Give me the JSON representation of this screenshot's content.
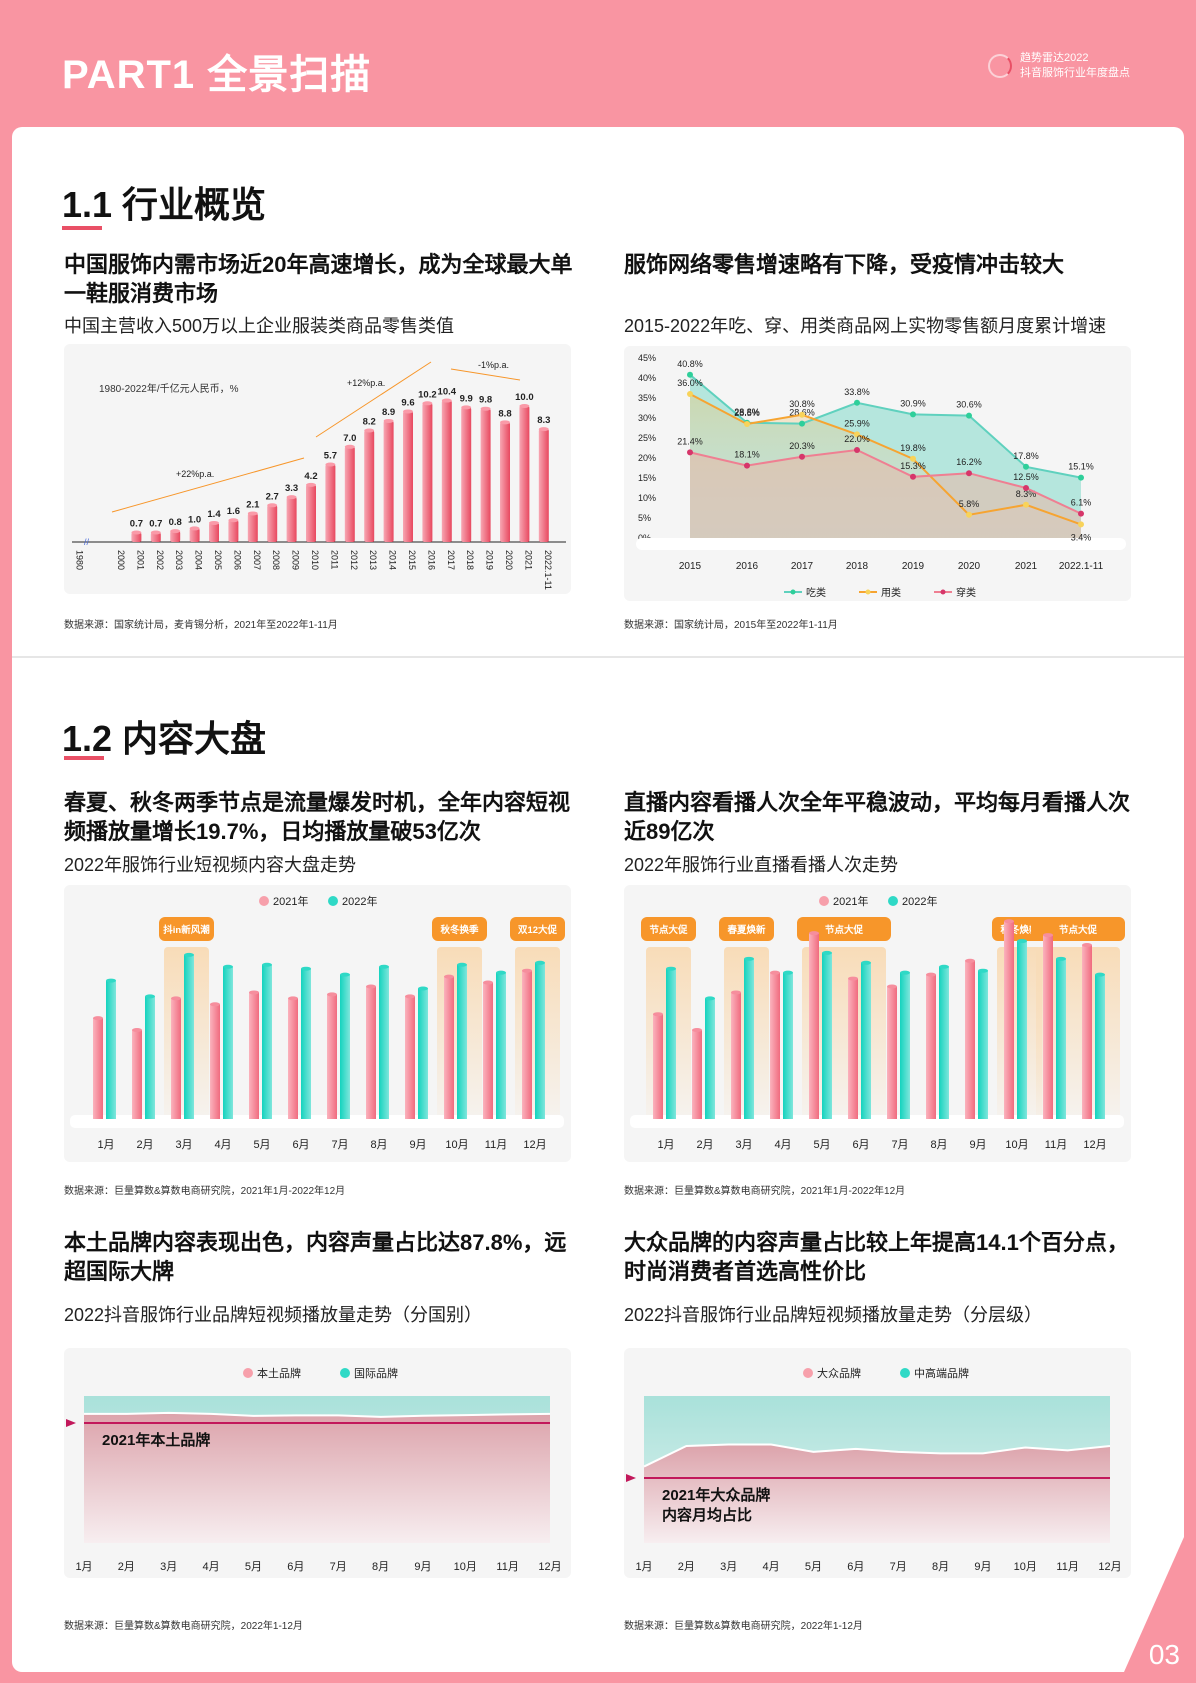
{
  "header": {
    "part_title": "PART1 全景扫描",
    "brand_line1": "趋势雷达2022",
    "brand_line2": "抖音服饰行业年度盘点"
  },
  "page_number": "03",
  "section1": {
    "title": "1.1 行业概览",
    "left": {
      "headline": "中国服饰内需市场近20年高速增长，成为全球最大单一鞋服消费市场",
      "subtitle": "中国主营收入500万以上企业服装类商品零售类值",
      "source": "数据来源：国家统计局，麦肯锡分析，2021年至2022年1-11月"
    },
    "right": {
      "headline": "服饰网络零售增速略有下降，受疫情冲击较大",
      "subtitle": "2015-2022年吃、穿、用类商品网上实物零售额月度累计增速",
      "source": "数据来源：国家统计局，2015年至2022年1-11月"
    }
  },
  "section2": {
    "title": "1.2 内容大盘",
    "c1": {
      "headline": "春夏、秋冬两季节点是流量爆发时机，全年内容短视频播放量增长19.7%，日均播放量破53亿次",
      "subtitle": "2022年服饰行业短视频内容大盘走势",
      "source": "数据来源：巨量算数&算数电商研究院，2021年1月-2022年12月"
    },
    "c2": {
      "headline": "直播内容看播人次全年平稳波动，平均每月看播人次近89亿次",
      "subtitle": "2022年服饰行业直播看播人次走势",
      "source": "数据来源：巨量算数&算数电商研究院，2021年1月-2022年12月"
    },
    "c3": {
      "headline": "本土品牌内容表现出色，内容声量占比达87.8%，远超国际大牌",
      "subtitle": "2022抖音服饰行业品牌短视频播放量走势（分国别）",
      "source": "数据来源：巨量算数&算数电商研究院，2022年1-12月"
    },
    "c4": {
      "headline": "大众品牌的内容声量占比较上年提高14.1个百分点，时尚消费者首选高性价比",
      "subtitle": "2022抖音服饰行业品牌短视频播放量走势（分层级）",
      "source": "数据来源：巨量算数&算数电商研究院，2022年1-12月"
    }
  },
  "colors": {
    "pink_bg": "#f995a2",
    "accent_red": "#e95066",
    "bar_pink": "#f27b8c",
    "bar_teal": "#2fd9c6",
    "orange": "#f7962a",
    "teal_line": "#5fd1be",
    "magenta": "#c2185b"
  },
  "chart_data": [
    {
      "type": "bar",
      "title": "中国主营收入500万以上企业服装类商品零售类值",
      "annotation_unit": "1980-2022年/千亿元人民币，%",
      "categories": [
        "1980",
        "2000",
        "2001",
        "2002",
        "2003",
        "2004",
        "2005",
        "2006",
        "2007",
        "2008",
        "2009",
        "2010",
        "2011",
        "2012",
        "2013",
        "2014",
        "2015",
        "2016",
        "2017",
        "2018",
        "2019",
        "2020",
        "2021",
        "2022.1-11"
      ],
      "values": [
        null,
        null,
        0.7,
        0.7,
        0.8,
        1.0,
        1.4,
        1.6,
        2.1,
        2.7,
        3.3,
        4.2,
        5.7,
        7.0,
        8.2,
        8.9,
        9.6,
        10.2,
        10.4,
        9.9,
        9.8,
        8.8,
        10.0,
        8.3
      ],
      "trend_annotations": [
        "+22%p.a.",
        "+12%p.a.",
        "-1%p.a."
      ],
      "ylim": [
        0,
        11
      ]
    },
    {
      "type": "line",
      "title": "2015-2022年吃、穿、用类商品网上实物零售额月度累计增速",
      "categories": [
        "2015",
        "2016",
        "2017",
        "2018",
        "2019",
        "2020",
        "2021",
        "2022.1-11"
      ],
      "yticks": [
        "0%",
        "5%",
        "10%",
        "15%",
        "20%",
        "25%",
        "30%",
        "35%",
        "40%",
        "45%"
      ],
      "ylim": [
        0,
        45
      ],
      "series": [
        {
          "name": "吃类",
          "values": [
            40.8,
            28.8,
            28.6,
            33.8,
            30.9,
            30.6,
            17.8,
            15.1
          ]
        },
        {
          "name": "用类",
          "values": [
            36.0,
            28.5,
            30.8,
            25.9,
            19.8,
            5.8,
            8.3,
            3.4
          ]
        },
        {
          "name": "穿类",
          "values": [
            21.4,
            18.1,
            20.3,
            22.0,
            15.3,
            16.2,
            12.5,
            6.1
          ]
        }
      ],
      "legend_position": "bottom"
    },
    {
      "type": "bar",
      "title": "2022年服饰行业短视频内容大盘走势",
      "categories": [
        "1月",
        "2月",
        "3月",
        "4月",
        "5月",
        "6月",
        "7月",
        "8月",
        "9月",
        "10月",
        "11月",
        "12月"
      ],
      "series": [
        {
          "name": "2021年",
          "values": [
            51,
            45,
            61,
            58,
            64,
            61,
            63,
            67,
            62,
            72,
            69,
            75
          ]
        },
        {
          "name": "2022年",
          "values": [
            70,
            62,
            83,
            77,
            78,
            76,
            73,
            77,
            66,
            78,
            74,
            79
          ]
        }
      ],
      "highlights": [
        {
          "label": "抖in新风潮",
          "months": [
            "3月"
          ]
        },
        {
          "label": "秋冬换季",
          "months": [
            "10月"
          ]
        },
        {
          "label": "双12大促",
          "months": [
            "12月"
          ]
        }
      ],
      "note": "relative heights; no y-axis values shown"
    },
    {
      "type": "bar",
      "title": "2022年服饰行业直播看播人次走势",
      "categories": [
        "1月",
        "2月",
        "3月",
        "4月",
        "5月",
        "6月",
        "7月",
        "8月",
        "9月",
        "10月",
        "11月",
        "12月"
      ],
      "series": [
        {
          "name": "2021年",
          "values": [
            53,
            45,
            64,
            74,
            94,
            71,
            67,
            73,
            80,
            100,
            93,
            88
          ]
        },
        {
          "name": "2022年",
          "values": [
            76,
            61,
            81,
            74,
            84,
            79,
            74,
            77,
            75,
            90,
            81,
            73
          ]
        }
      ],
      "highlights": [
        {
          "label": "节点大促",
          "months": [
            "1月"
          ]
        },
        {
          "label": "春夏焕新",
          "months": [
            "3月"
          ]
        },
        {
          "label": "节点大促",
          "months": [
            "5月",
            "6月"
          ]
        },
        {
          "label": "秋冬焕新",
          "months": [
            "10月"
          ]
        },
        {
          "label": "节点大促",
          "months": [
            "11月",
            "12月"
          ]
        }
      ],
      "note": "relative heights; no y-axis values shown"
    },
    {
      "type": "area",
      "title": "2022抖音服饰行业品牌短视频播放量走势（分国别）",
      "categories": [
        "1月",
        "2月",
        "3月",
        "4月",
        "5月",
        "6月",
        "7月",
        "8月",
        "9月",
        "10月",
        "11月",
        "12月"
      ],
      "series": [
        {
          "name": "本土品牌",
          "values": [
            87.8,
            87.8,
            88.5,
            87.8,
            86.5,
            86.8,
            86.8,
            85.8,
            86.6,
            87.0,
            87.5,
            87.8
          ]
        },
        {
          "name": "国际品牌",
          "values": [
            12.2,
            12.2,
            11.5,
            12.2,
            13.5,
            13.2,
            13.2,
            14.2,
            13.4,
            13.0,
            12.5,
            12.2
          ]
        }
      ],
      "reference_line": {
        "label": "2021年本土品牌",
        "position": "near top"
      },
      "stacked": true
    },
    {
      "type": "area",
      "title": "2022抖音服饰行业品牌短视频播放量走势（分层级）",
      "categories": [
        "1月",
        "2月",
        "3月",
        "4月",
        "5月",
        "6月",
        "7月",
        "8月",
        "9月",
        "10月",
        "11月",
        "12月"
      ],
      "series": [
        {
          "name": "大众品牌",
          "values": [
            52,
            66,
            67,
            67,
            62,
            64,
            62,
            61,
            61,
            65,
            63,
            66
          ]
        },
        {
          "name": "中高端品牌",
          "values": [
            48,
            34,
            33,
            33,
            38,
            36,
            38,
            39,
            39,
            35,
            37,
            34
          ]
        }
      ],
      "reference_line": {
        "label": "2021年大众品牌内容月均占比"
      },
      "stacked": true
    }
  ]
}
